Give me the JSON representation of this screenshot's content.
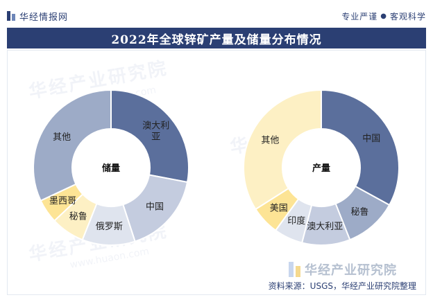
{
  "header": {
    "brand": "华经情报网",
    "slogan_left": "专业严谨",
    "slogan_right": "客观科学"
  },
  "title": "2022年全球锌矿产量及储量分布情况",
  "watermark": {
    "text": "华经产业研究院",
    "url": "www.huaon.com"
  },
  "colors": {
    "china_blue": "#5b6f9c",
    "light_grey_blue": "#c4ccdf",
    "pale_blue": "#dfe4ee",
    "yellow": "#fde495",
    "cream": "#fdf0c4",
    "steel": "#9dabc7",
    "header_navy": "#2b3f73"
  },
  "chart_data": [
    {
      "type": "pie",
      "center_label": "储量",
      "categories": [
        "澳大利亚",
        "中国",
        "俄罗斯",
        "秘鲁",
        "墨西哥",
        "其他"
      ],
      "values": [
        28,
        17,
        11,
        7,
        5,
        32
      ],
      "slice_colors": [
        "#5b6f9c",
        "#c4ccdf",
        "#dfe4ee",
        "#fdf0c4",
        "#fde495",
        "#9dabc7"
      ]
    },
    {
      "type": "pie",
      "center_label": "产量",
      "categories": [
        "中国",
        "秘鲁",
        "澳大利亚",
        "印度",
        "美国",
        "其他"
      ],
      "values": [
        33,
        11,
        10,
        6,
        6,
        34
      ],
      "slice_colors": [
        "#5b6f9c",
        "#9dabc7",
        "#c4ccdf",
        "#dfe4ee",
        "#fde495",
        "#fdf0c4"
      ]
    }
  ],
  "footer": {
    "logo_text": "华经产业研究院",
    "source": "资料来源：USGS，华经产业研究院整理"
  }
}
